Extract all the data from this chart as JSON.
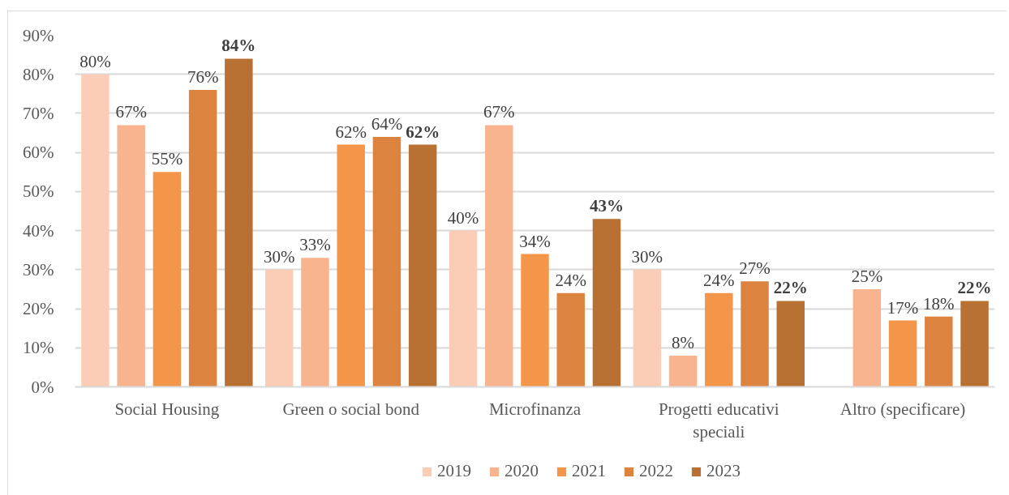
{
  "chart_data": {
    "type": "bar",
    "categories": [
      "Social Housing",
      "Green o social bond",
      "Microfinanza",
      "Progetti educativi speciali",
      "Altro (specificare)"
    ],
    "series": [
      {
        "name": "2019",
        "color": "#fbcdb7",
        "values": [
          80,
          30,
          40,
          30,
          null
        ],
        "value_labels": [
          "80%",
          "30%",
          "40%",
          "30%",
          null
        ]
      },
      {
        "name": "2020",
        "color": "#f8b48e",
        "values": [
          67,
          33,
          67,
          8,
          25
        ],
        "value_labels": [
          "67%",
          "33%",
          "67%",
          "8%",
          "25%"
        ]
      },
      {
        "name": "2021",
        "color": "#f4964a",
        "values": [
          55,
          62,
          34,
          24,
          17
        ],
        "value_labels": [
          "55%",
          "62%",
          "34%",
          "24%",
          "17%"
        ]
      },
      {
        "name": "2022",
        "color": "#db833f",
        "values": [
          76,
          64,
          24,
          27,
          18
        ],
        "value_labels": [
          "76%",
          "64%",
          "24%",
          "27%",
          "18%"
        ]
      },
      {
        "name": "2023",
        "color": "#b97033",
        "values": [
          84,
          62,
          43,
          22,
          22
        ],
        "value_labels": [
          "84%",
          "62%",
          "43%",
          "22%",
          "22%"
        ]
      }
    ],
    "ylim": [
      0,
      90
    ],
    "yticks": [
      {
        "value": 0,
        "label": "0%"
      },
      {
        "value": 10,
        "label": "10%"
      },
      {
        "value": 20,
        "label": "20%"
      },
      {
        "value": 30,
        "label": "30%"
      },
      {
        "value": 40,
        "label": "40%"
      },
      {
        "value": 50,
        "label": "50%"
      },
      {
        "value": 60,
        "label": "60%"
      },
      {
        "value": 70,
        "label": "70%"
      },
      {
        "value": 80,
        "label": "80%"
      },
      {
        "value": 90,
        "label": "90%"
      }
    ],
    "grid": "y",
    "legend": "bottom"
  }
}
